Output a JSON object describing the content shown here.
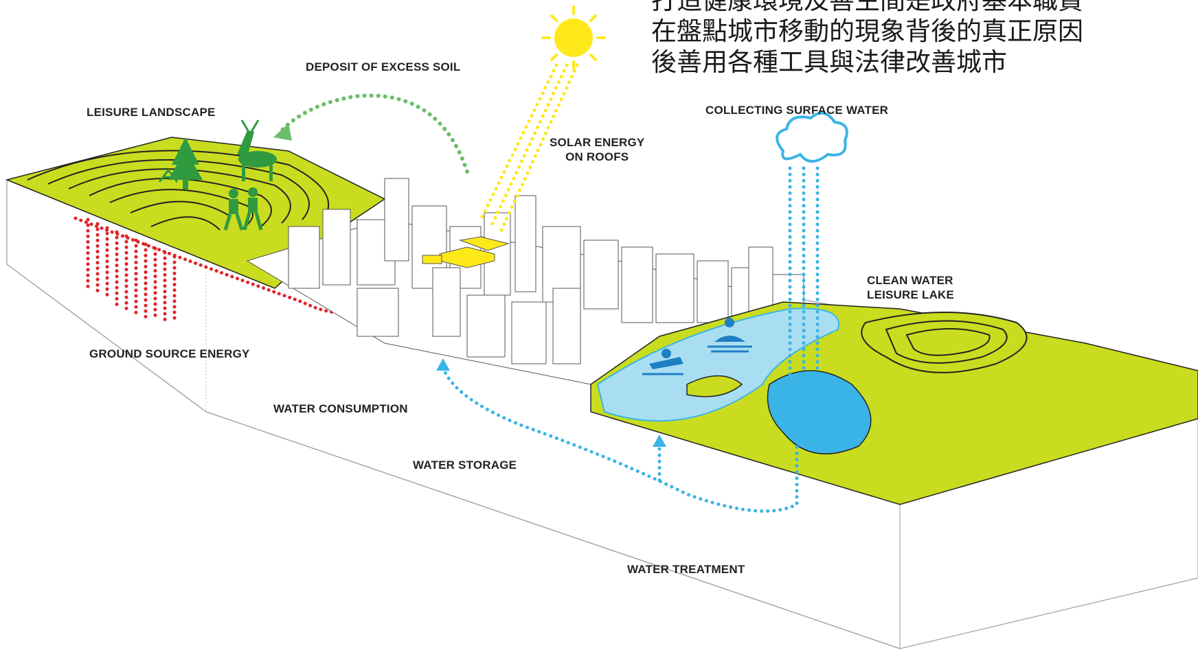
{
  "labels": {
    "deposit_soil": "DEPOSIT OF EXCESS SOIL",
    "leisure_landscape": "LEISURE LANDSCAPE",
    "solar_line1": "SOLAR ENERGY",
    "solar_line2": "ON ROOFS",
    "collecting_water": "COLLECTING SURFACE WATER",
    "clean_line1": "CLEAN WATER",
    "clean_line2": "LEISURE LAKE",
    "ground_source": "GROUND SOURCE ENERGY",
    "water_consumption": "WATER CONSUMPTION",
    "water_storage": "WATER STORAGE",
    "water_treatment": "WATER TREATMENT"
  },
  "overlay_text": {
    "line1": "打造健康環境及善生間是政府基本職責",
    "line2": "在盤點城市移動的現象背後的真正原因",
    "line3": "後善用各種工具與法律改善城市"
  },
  "colors": {
    "landscape_green": "#c9dc1f",
    "forest_green": "#2f9a3f",
    "ground_energy_red": "#e0242a",
    "soil_arrow_green": "#6cbd6a",
    "sun_yellow": "#ffe81a",
    "water_blue": "#3ab4e6",
    "lake_blue": "#a9def2"
  }
}
